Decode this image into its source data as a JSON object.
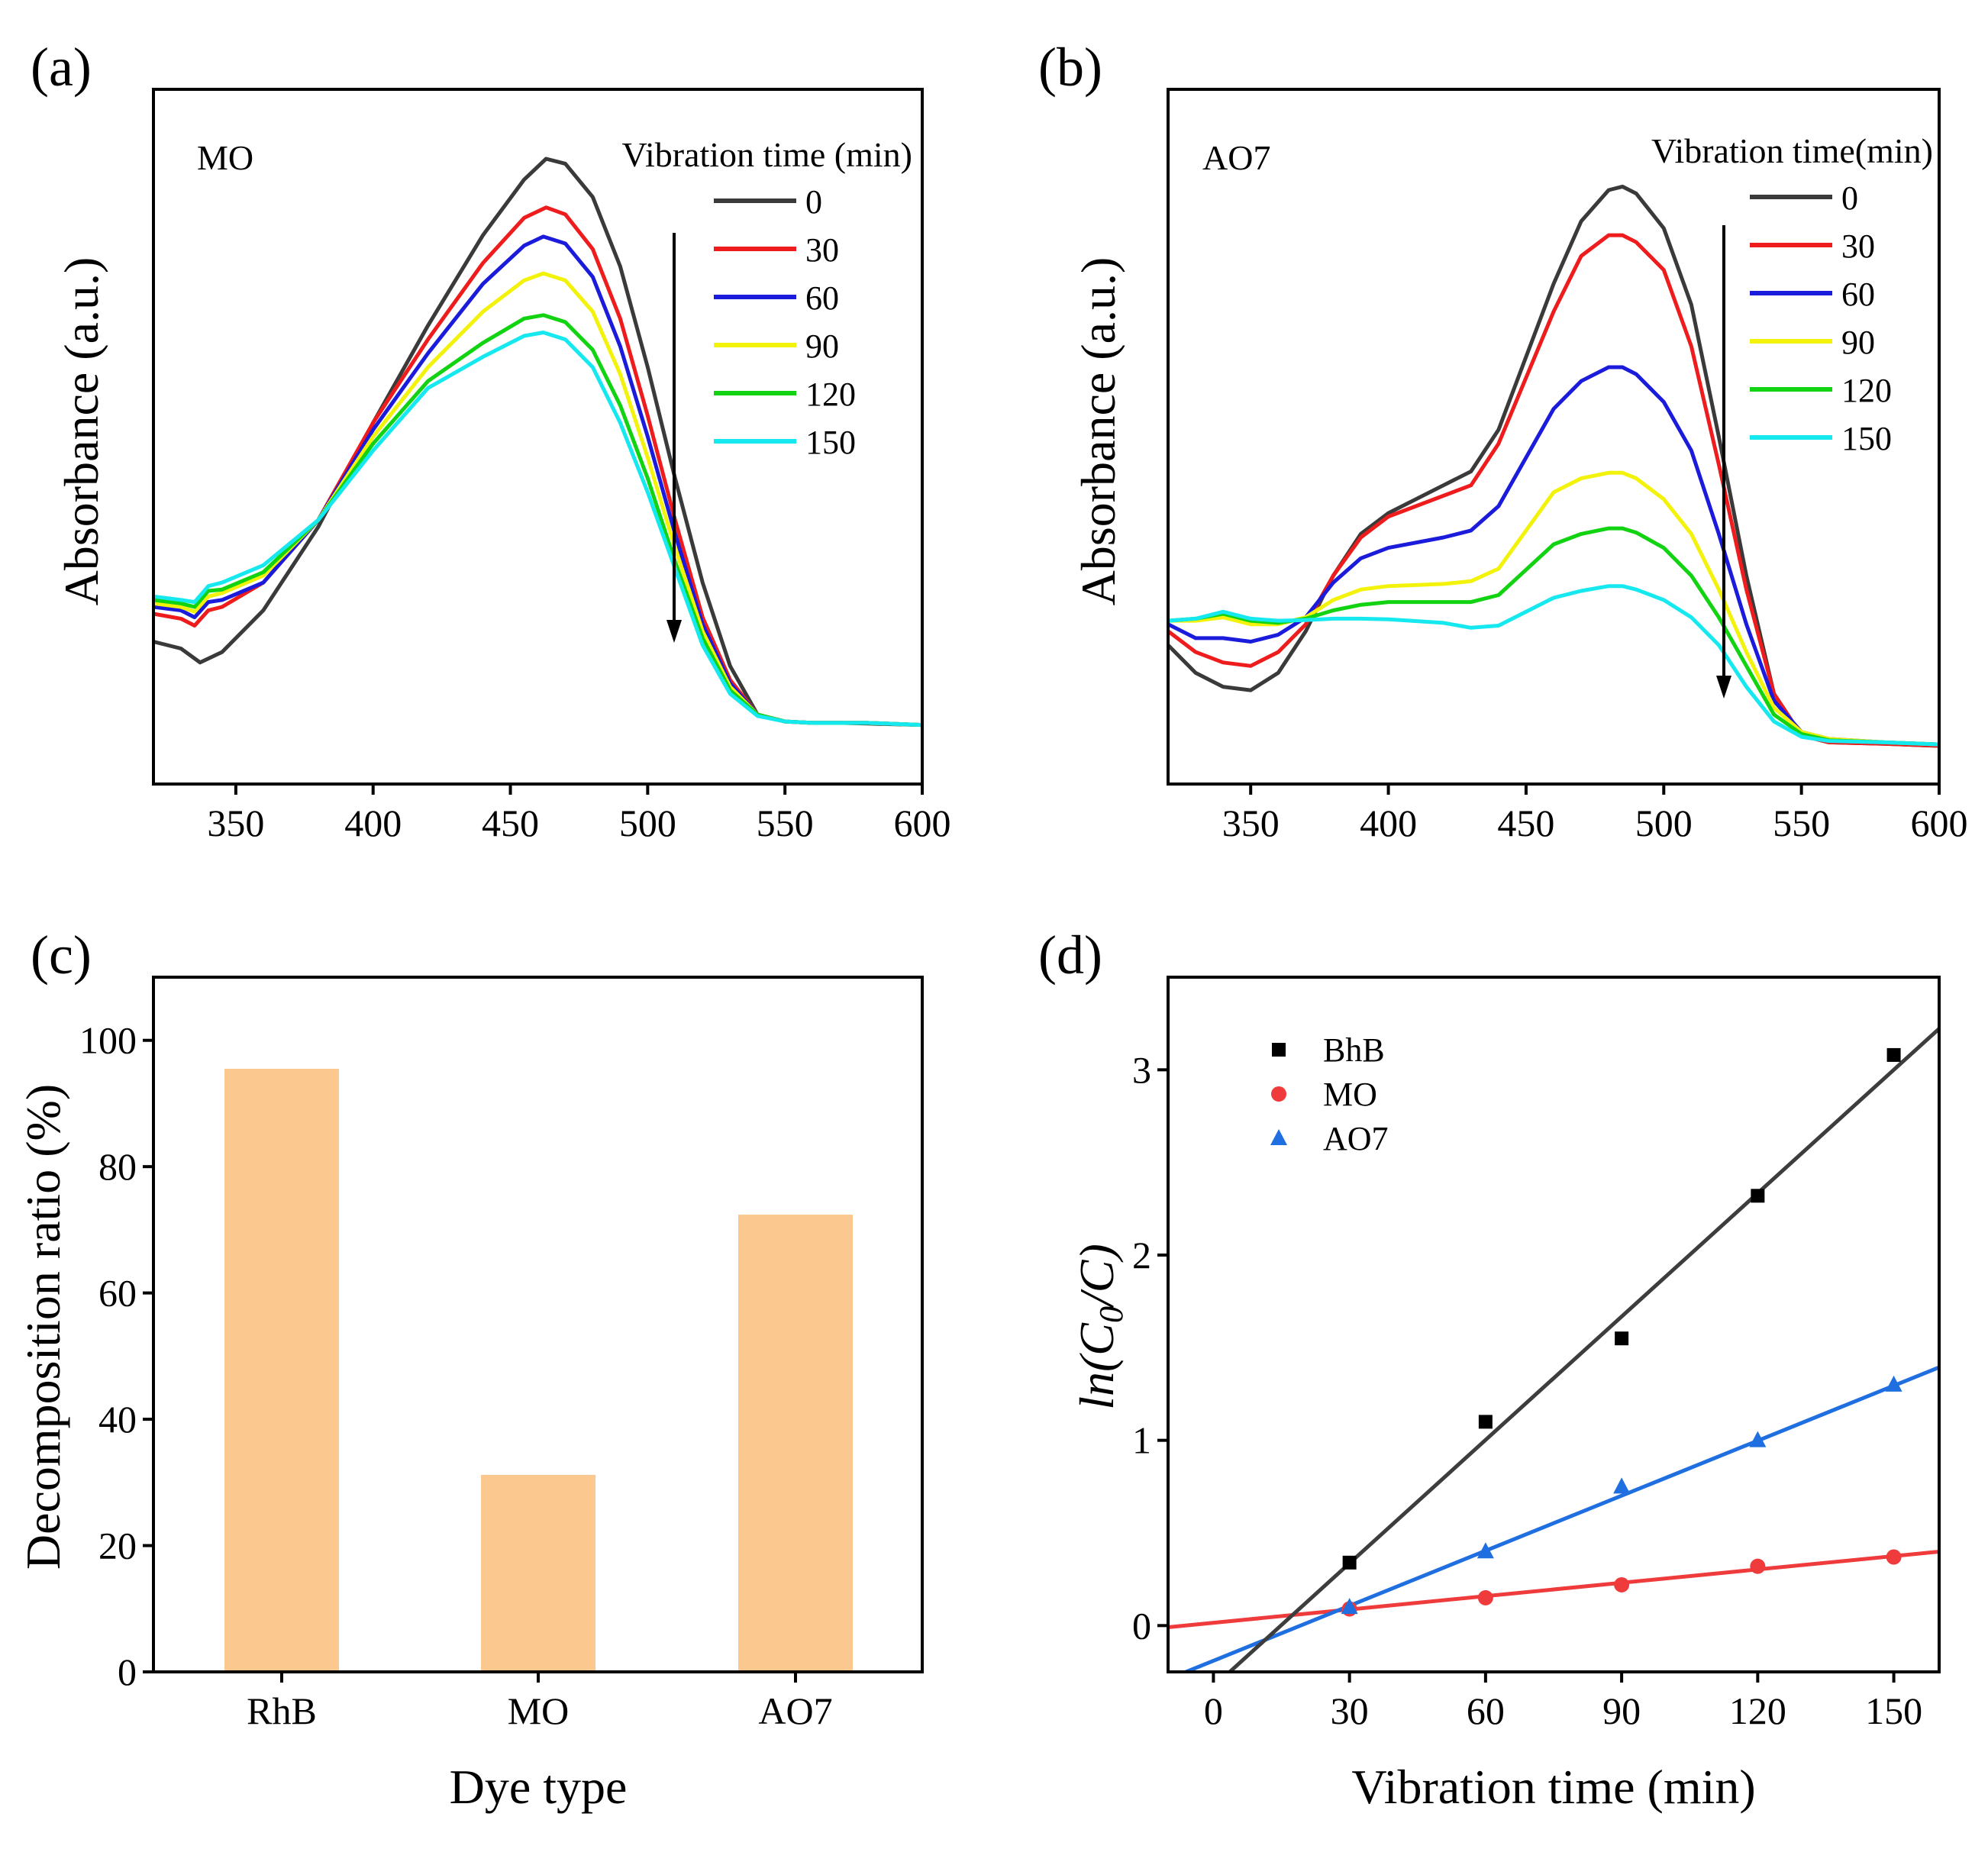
{
  "panels": {
    "a": {
      "label": "(a)",
      "ylabel": "Absorbance (a.u.)",
      "dye": "MO",
      "legend_title": "Vibration time (min)"
    },
    "b": {
      "label": "(b)",
      "ylabel": "Absorbance (a.u.)",
      "dye": "AO7",
      "legend_title": "Vibration time(min)"
    },
    "c": {
      "label": "(c)",
      "ylabel": "Decomposition ratio (%)",
      "xlabel": "Dye type"
    },
    "d": {
      "label": "(d)",
      "ylabel_main": "ln(C",
      "ylabel_sub": "0",
      "ylabel_end": "/C)",
      "xlabel": "Vibration time (min)"
    }
  },
  "colors": {
    "0": "#3a3a3a",
    "30": "#ee1c1c",
    "60": "#1b1bdc",
    "90": "#f2f20a",
    "120": "#12d312",
    "150": "#16e8ef",
    "bar": "#fbc98f",
    "BhB": "#000000",
    "MO": "#ef3b3b",
    "AO7": "#1f6fe0",
    "fit_BhB": "#3d3d3d",
    "fit_MO": "#ef3b3b",
    "fit_AO7": "#1f6fe0"
  },
  "chart_data": [
    {
      "id": "a",
      "type": "line",
      "title": "MO",
      "xlabel": "",
      "ylabel": "Absorbance (a.u.)",
      "xlim": [
        320,
        600
      ],
      "ylim": [
        0,
        1.0
      ],
      "xticks": [
        350,
        400,
        450,
        500,
        550,
        600
      ],
      "legend_title": "Vibration time (min)",
      "annotation": "downward arrow at ~510 nm indicating decreasing absorbance",
      "series": [
        {
          "name": "0",
          "x": [
            320,
            330,
            337,
            345,
            360,
            380,
            400,
            420,
            440,
            455,
            463,
            470,
            480,
            490,
            500,
            510,
            520,
            530,
            540,
            550,
            560,
            570,
            580,
            600
          ],
          "y": [
            0.205,
            0.195,
            0.175,
            0.19,
            0.25,
            0.37,
            0.52,
            0.66,
            0.79,
            0.87,
            0.9,
            0.893,
            0.845,
            0.745,
            0.6,
            0.44,
            0.29,
            0.17,
            0.1,
            0.09,
            0.088,
            0.088,
            0.087,
            0.085
          ]
        },
        {
          "name": "30",
          "x": [
            320,
            330,
            335,
            340,
            345,
            360,
            380,
            400,
            420,
            440,
            455,
            463,
            470,
            480,
            490,
            500,
            510,
            520,
            530,
            540,
            550,
            560,
            580,
            600
          ],
          "y": [
            0.245,
            0.238,
            0.228,
            0.25,
            0.255,
            0.29,
            0.38,
            0.52,
            0.64,
            0.75,
            0.815,
            0.83,
            0.82,
            0.77,
            0.67,
            0.53,
            0.38,
            0.24,
            0.15,
            0.1,
            0.09,
            0.088,
            0.088,
            0.085
          ]
        },
        {
          "name": "60",
          "x": [
            320,
            330,
            335,
            340,
            345,
            360,
            380,
            400,
            420,
            440,
            455,
            462,
            470,
            480,
            490,
            500,
            510,
            520,
            530,
            540,
            550,
            560,
            580,
            600
          ],
          "y": [
            0.255,
            0.25,
            0.24,
            0.262,
            0.265,
            0.29,
            0.38,
            0.51,
            0.62,
            0.72,
            0.775,
            0.788,
            0.778,
            0.73,
            0.63,
            0.5,
            0.36,
            0.23,
            0.145,
            0.1,
            0.09,
            0.088,
            0.088,
            0.085
          ]
        },
        {
          "name": "90",
          "x": [
            320,
            330,
            335,
            340,
            345,
            360,
            380,
            400,
            420,
            440,
            455,
            462,
            470,
            480,
            490,
            500,
            510,
            520,
            530,
            540,
            550,
            560,
            580,
            600
          ],
          "y": [
            0.26,
            0.255,
            0.248,
            0.27,
            0.275,
            0.3,
            0.38,
            0.5,
            0.6,
            0.68,
            0.725,
            0.735,
            0.725,
            0.68,
            0.59,
            0.47,
            0.34,
            0.22,
            0.14,
            0.1,
            0.09,
            0.088,
            0.088,
            0.085
          ]
        },
        {
          "name": "120",
          "x": [
            320,
            330,
            335,
            340,
            345,
            360,
            380,
            400,
            420,
            440,
            455,
            462,
            470,
            480,
            490,
            500,
            510,
            520,
            530,
            540,
            550,
            560,
            580,
            600
          ],
          "y": [
            0.265,
            0.26,
            0.255,
            0.278,
            0.28,
            0.305,
            0.38,
            0.49,
            0.58,
            0.635,
            0.67,
            0.675,
            0.665,
            0.625,
            0.545,
            0.44,
            0.32,
            0.21,
            0.135,
            0.1,
            0.09,
            0.088,
            0.088,
            0.085
          ]
        },
        {
          "name": "150",
          "x": [
            320,
            330,
            335,
            340,
            345,
            360,
            380,
            400,
            420,
            440,
            455,
            462,
            470,
            480,
            490,
            500,
            510,
            520,
            530,
            540,
            550,
            560,
            580,
            600
          ],
          "y": [
            0.27,
            0.265,
            0.262,
            0.285,
            0.29,
            0.315,
            0.38,
            0.48,
            0.57,
            0.615,
            0.645,
            0.65,
            0.64,
            0.6,
            0.52,
            0.42,
            0.31,
            0.2,
            0.13,
            0.098,
            0.09,
            0.088,
            0.088,
            0.085
          ]
        }
      ]
    },
    {
      "id": "b",
      "type": "line",
      "title": "AO7",
      "xlabel": "",
      "ylabel": "Absorbance (a.u.)",
      "xlim": [
        320,
        600
      ],
      "ylim": [
        0,
        1.0
      ],
      "xticks": [
        350,
        400,
        450,
        500,
        550,
        600
      ],
      "legend_title": "Vibration time(min)",
      "annotation": "downward arrow at ~522 nm indicating decreasing absorbance",
      "series": [
        {
          "name": "0",
          "x": [
            320,
            330,
            340,
            350,
            360,
            370,
            380,
            390,
            400,
            420,
            430,
            440,
            460,
            470,
            480,
            485,
            490,
            500,
            510,
            520,
            530,
            540,
            550,
            560,
            580,
            600
          ],
          "y": [
            0.2,
            0.16,
            0.14,
            0.135,
            0.16,
            0.22,
            0.3,
            0.36,
            0.39,
            0.43,
            0.45,
            0.51,
            0.72,
            0.81,
            0.855,
            0.86,
            0.85,
            0.8,
            0.69,
            0.5,
            0.3,
            0.13,
            0.07,
            0.06,
            0.058,
            0.055
          ]
        },
        {
          "name": "30",
          "x": [
            320,
            330,
            340,
            350,
            360,
            370,
            380,
            390,
            400,
            420,
            430,
            440,
            460,
            470,
            480,
            485,
            490,
            500,
            510,
            520,
            530,
            540,
            550,
            560,
            580,
            600
          ],
          "y": [
            0.22,
            0.19,
            0.175,
            0.17,
            0.19,
            0.23,
            0.3,
            0.355,
            0.385,
            0.415,
            0.43,
            0.49,
            0.68,
            0.76,
            0.79,
            0.79,
            0.78,
            0.74,
            0.63,
            0.46,
            0.28,
            0.13,
            0.07,
            0.06,
            0.058,
            0.055
          ]
        },
        {
          "name": "60",
          "x": [
            320,
            330,
            340,
            350,
            360,
            370,
            380,
            390,
            400,
            420,
            430,
            440,
            460,
            470,
            480,
            485,
            490,
            500,
            510,
            520,
            530,
            540,
            550,
            560,
            580,
            600
          ],
          "y": [
            0.23,
            0.21,
            0.21,
            0.205,
            0.215,
            0.24,
            0.29,
            0.325,
            0.34,
            0.355,
            0.365,
            0.4,
            0.54,
            0.58,
            0.6,
            0.6,
            0.59,
            0.55,
            0.48,
            0.36,
            0.23,
            0.12,
            0.075,
            0.065,
            0.06,
            0.057
          ]
        },
        {
          "name": "90",
          "x": [
            320,
            330,
            340,
            350,
            360,
            370,
            380,
            390,
            400,
            420,
            430,
            440,
            460,
            470,
            480,
            485,
            490,
            500,
            510,
            520,
            530,
            540,
            550,
            560,
            580,
            600
          ],
          "y": [
            0.235,
            0.235,
            0.24,
            0.23,
            0.23,
            0.24,
            0.265,
            0.28,
            0.285,
            0.288,
            0.292,
            0.31,
            0.42,
            0.44,
            0.448,
            0.448,
            0.44,
            0.41,
            0.36,
            0.28,
            0.19,
            0.11,
            0.075,
            0.065,
            0.06,
            0.057
          ]
        },
        {
          "name": "120",
          "x": [
            320,
            330,
            340,
            350,
            360,
            370,
            380,
            390,
            400,
            420,
            430,
            440,
            460,
            470,
            480,
            485,
            490,
            500,
            510,
            520,
            530,
            540,
            550,
            560,
            580,
            600
          ],
          "y": [
            0.235,
            0.238,
            0.245,
            0.235,
            0.232,
            0.238,
            0.25,
            0.258,
            0.262,
            0.262,
            0.262,
            0.272,
            0.345,
            0.36,
            0.368,
            0.368,
            0.362,
            0.34,
            0.3,
            0.24,
            0.17,
            0.1,
            0.072,
            0.063,
            0.06,
            0.057
          ]
        },
        {
          "name": "150",
          "x": [
            320,
            330,
            340,
            350,
            360,
            370,
            380,
            390,
            400,
            420,
            430,
            440,
            460,
            470,
            480,
            485,
            490,
            500,
            510,
            520,
            530,
            540,
            550,
            560,
            580,
            600
          ],
          "y": [
            0.235,
            0.238,
            0.248,
            0.238,
            0.235,
            0.236,
            0.238,
            0.238,
            0.237,
            0.232,
            0.225,
            0.228,
            0.268,
            0.278,
            0.285,
            0.285,
            0.28,
            0.265,
            0.24,
            0.2,
            0.14,
            0.09,
            0.068,
            0.062,
            0.06,
            0.057
          ]
        }
      ]
    },
    {
      "id": "c",
      "type": "bar",
      "title": "",
      "categories": [
        "RhB",
        "MO",
        "AO7"
      ],
      "values": [
        95.5,
        31.2,
        72.4
      ],
      "xlabel": "Dye type",
      "ylabel": "Decomposition ratio (%)",
      "ylim": [
        0,
        110
      ],
      "yticks": [
        0,
        20,
        40,
        60,
        80,
        100
      ]
    },
    {
      "id": "d",
      "type": "scatter",
      "title": "",
      "xlabel": "Vibration time (min)",
      "ylabel": "ln(C0/C)",
      "xlim": [
        -10,
        160
      ],
      "ylim": [
        -0.25,
        3.5
      ],
      "xticks": [
        0,
        30,
        60,
        90,
        120,
        150
      ],
      "yticks": [
        0,
        1,
        2,
        3
      ],
      "legend": "top-left",
      "series": [
        {
          "name": "BhB",
          "marker": "square",
          "x": [
            30,
            60,
            90,
            120,
            150
          ],
          "y": [
            0.34,
            1.1,
            1.55,
            2.32,
            3.08
          ],
          "fit": {
            "slope": 0.0222,
            "intercept": -0.33
          }
        },
        {
          "name": "MO",
          "marker": "circle",
          "x": [
            30,
            60,
            90,
            120,
            150
          ],
          "y": [
            0.09,
            0.15,
            0.22,
            0.32,
            0.37
          ],
          "fit": {
            "slope": 0.0024,
            "intercept": 0.015
          }
        },
        {
          "name": "AO7",
          "marker": "triangle",
          "x": [
            30,
            60,
            90,
            120,
            150
          ],
          "y": [
            0.1,
            0.4,
            0.75,
            1.0,
            1.3
          ],
          "fit": {
            "slope": 0.0099,
            "intercept": -0.19
          }
        }
      ]
    }
  ]
}
